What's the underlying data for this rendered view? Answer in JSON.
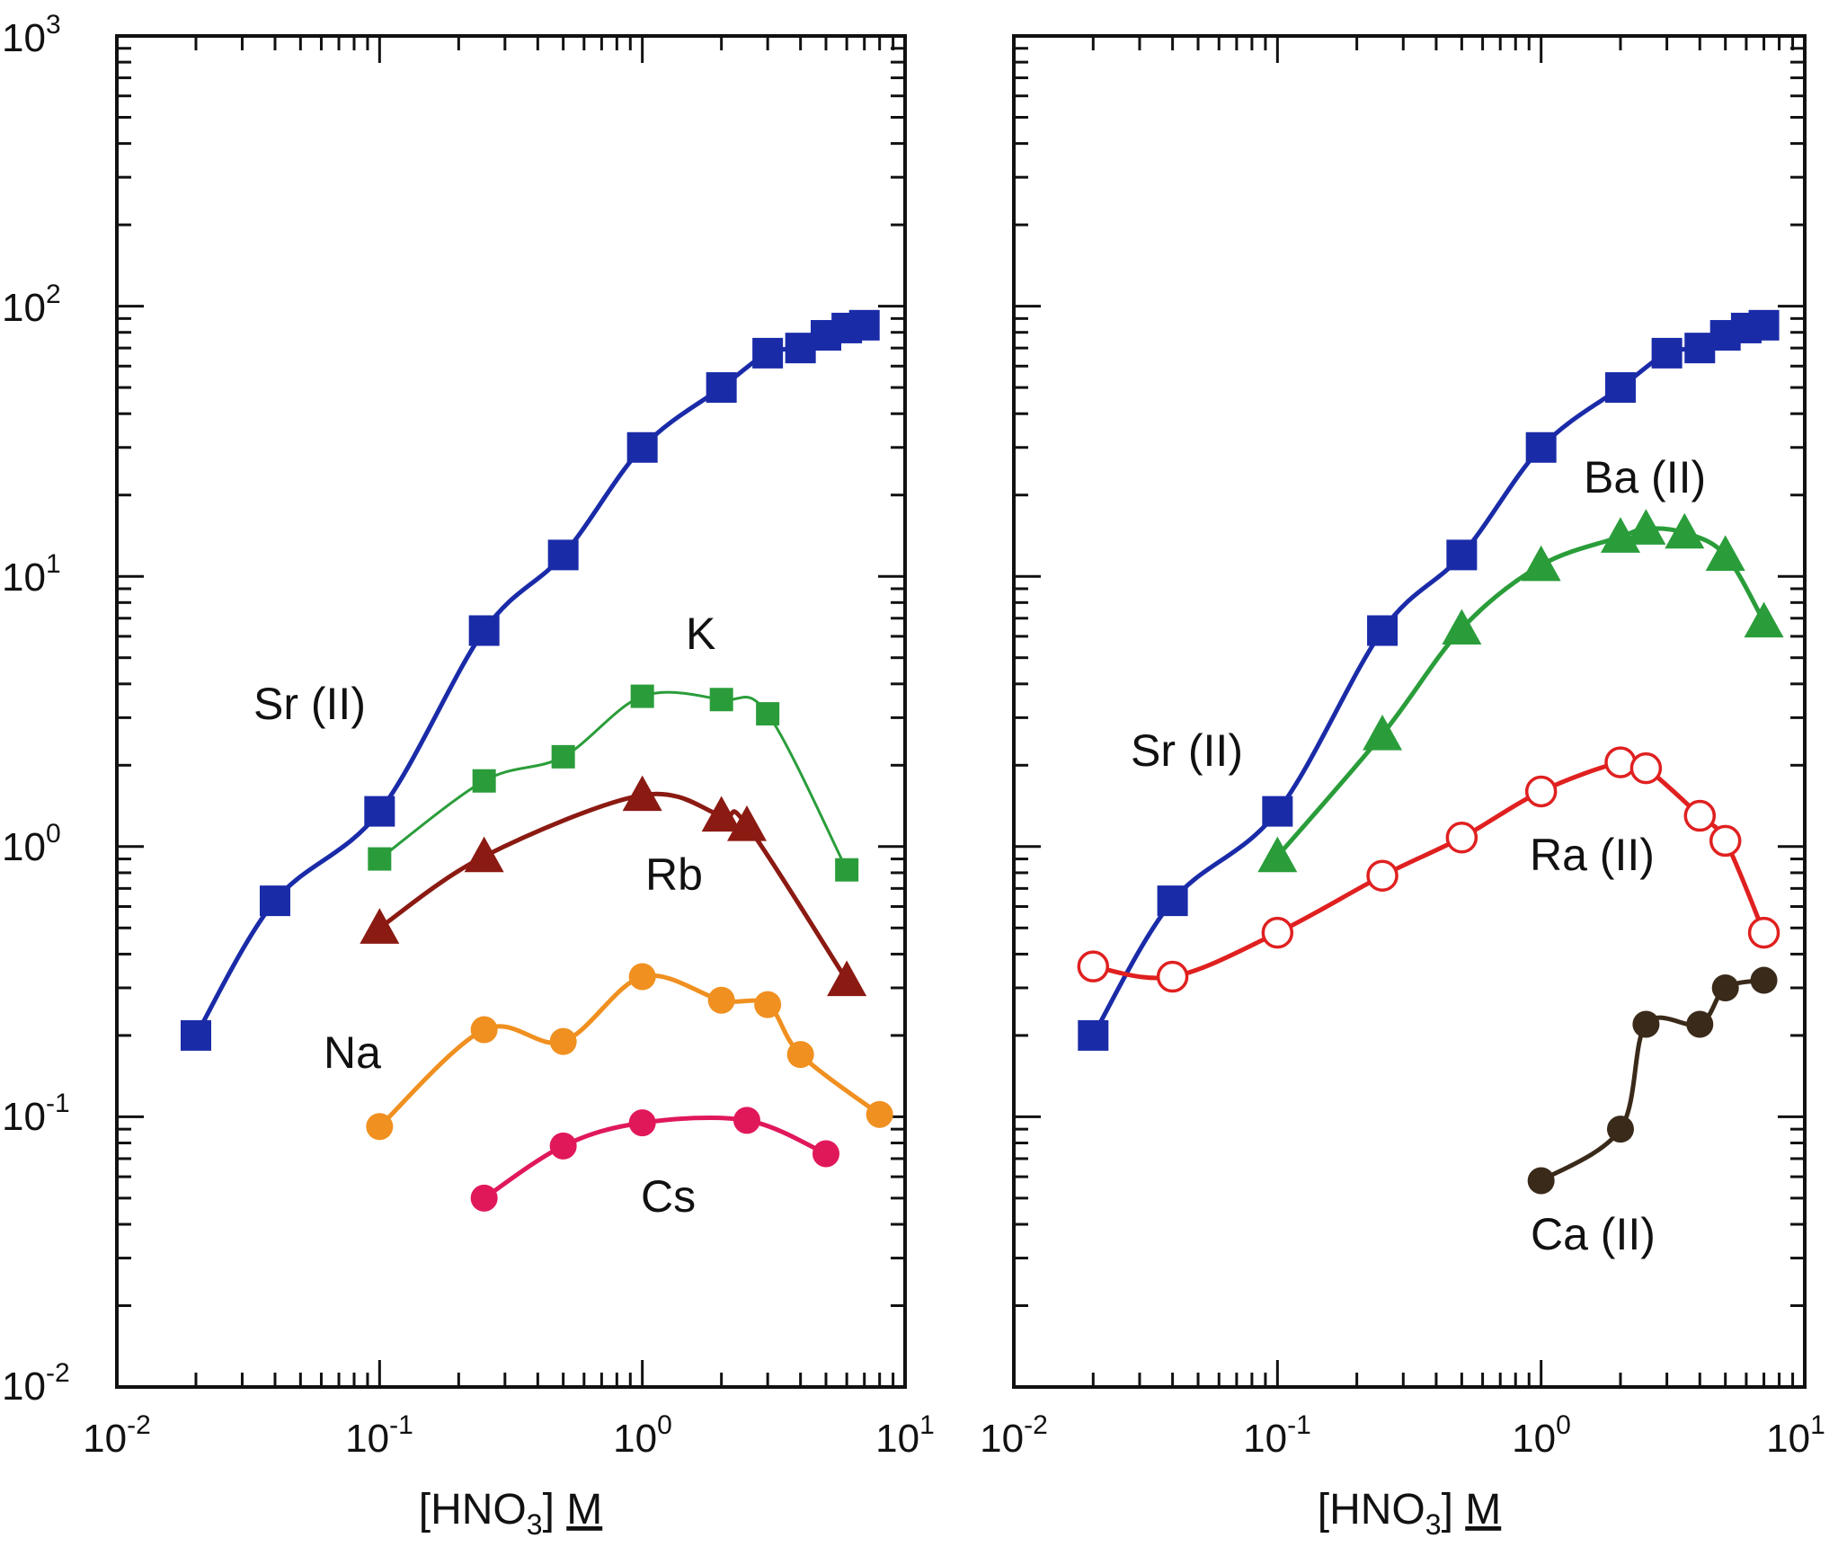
{
  "chart_data": [
    {
      "type": "scatter",
      "title": "",
      "xlabel": "[HNO3] M",
      "ylabel": "",
      "xscale": "log",
      "yscale": "log",
      "xlim": [
        0.01,
        10
      ],
      "ylim": [
        0.01,
        1000
      ],
      "x_ticks": [
        "10-2",
        "10-1",
        "100",
        "101"
      ],
      "y_ticks": [
        "10-2",
        "10-1",
        "100",
        "101",
        "102",
        "103"
      ],
      "series": [
        {
          "name": "Sr (II)",
          "label": "Sr (II)",
          "color": "#1a2ba8",
          "marker": "square",
          "x": [
            0.02,
            0.04,
            0.1,
            0.25,
            0.5,
            1.0,
            2.0,
            3.0,
            4.0,
            5.0,
            6.0,
            7.0
          ],
          "y": [
            0.2,
            0.63,
            1.35,
            6.3,
            12,
            30,
            50,
            67,
            70,
            78,
            83,
            85
          ]
        },
        {
          "name": "K",
          "label": "K",
          "color": "#2a9d3a",
          "marker": "square-small",
          "x": [
            0.1,
            0.25,
            0.5,
            1.0,
            2.0,
            3.0,
            6.0
          ],
          "y": [
            0.9,
            1.75,
            2.15,
            3.6,
            3.5,
            3.1,
            0.82
          ]
        },
        {
          "name": "Rb",
          "label": "Rb",
          "color": "#8b1a12",
          "marker": "triangle",
          "x": [
            0.1,
            0.25,
            1.0,
            2.0,
            2.5,
            6.0
          ],
          "y": [
            0.5,
            0.92,
            1.55,
            1.3,
            1.2,
            0.32
          ]
        },
        {
          "name": "Na",
          "label": "Na",
          "color": "#f09020",
          "marker": "circle",
          "x": [
            0.1,
            0.25,
            0.5,
            1.0,
            2.0,
            3.0,
            4.0,
            8.0
          ],
          "y": [
            0.092,
            0.21,
            0.19,
            0.33,
            0.27,
            0.26,
            0.17,
            0.102
          ]
        },
        {
          "name": "Cs",
          "label": "Cs",
          "color": "#e0185a",
          "marker": "circle",
          "x": [
            0.25,
            0.5,
            1.0,
            2.5,
            5.0
          ],
          "y": [
            0.05,
            0.078,
            0.095,
            0.097,
            0.073
          ]
        }
      ]
    },
    {
      "type": "scatter",
      "title": "",
      "xlabel": "[HNO3] M",
      "ylabel": "",
      "xscale": "log",
      "yscale": "log",
      "xlim": [
        0.01,
        10
      ],
      "ylim": [
        0.01,
        1000
      ],
      "x_ticks": [
        "10-2",
        "10-1",
        "100",
        "101"
      ],
      "series": [
        {
          "name": "Sr (II)",
          "label": "Sr (II)",
          "color": "#1a2ba8",
          "marker": "square",
          "x": [
            0.02,
            0.04,
            0.1,
            0.25,
            0.5,
            1.0,
            2.0,
            3.0,
            4.0,
            5.0,
            6.0,
            7.0
          ],
          "y": [
            0.2,
            0.63,
            1.35,
            6.3,
            12,
            30,
            50,
            67,
            70,
            78,
            83,
            85
          ]
        },
        {
          "name": "Ba (II)",
          "label": "Ba (II)",
          "color": "#2a9d3a",
          "marker": "triangle",
          "x": [
            0.1,
            0.25,
            0.5,
            1.0,
            2.0,
            2.5,
            3.5,
            5.0,
            7.0
          ],
          "y": [
            0.92,
            2.6,
            6.4,
            11,
            14,
            15,
            14.5,
            12,
            6.8
          ]
        },
        {
          "name": "Ra (II)",
          "label": "Ra (II)",
          "color": "#e02020",
          "marker": "circle-open",
          "x": [
            0.02,
            0.04,
            0.1,
            0.25,
            0.5,
            1.0,
            2.0,
            2.5,
            4.0,
            5.0,
            7.0
          ],
          "y": [
            0.36,
            0.33,
            0.48,
            0.78,
            1.08,
            1.6,
            2.05,
            1.95,
            1.3,
            1.05,
            0.48
          ]
        },
        {
          "name": "Ca (II)",
          "label": "Ca (II)",
          "color": "#3a2a1a",
          "marker": "circle",
          "x": [
            1.0,
            2.0,
            2.5,
            4.0,
            5.0,
            7.0
          ],
          "y": [
            0.058,
            0.09,
            0.22,
            0.22,
            0.3,
            0.32
          ]
        }
      ]
    }
  ]
}
